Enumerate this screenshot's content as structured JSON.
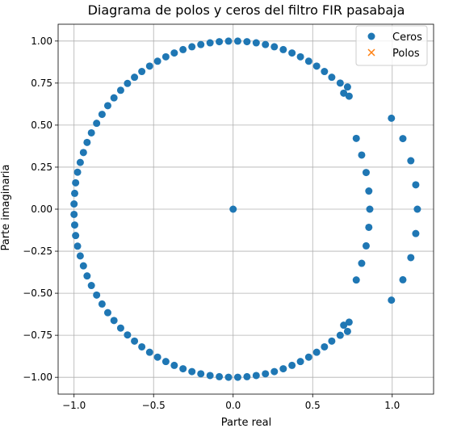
{
  "chart_data": {
    "type": "scatter",
    "title": "Diagrama de polos y ceros del filtro FIR pasabaja",
    "xlabel": "Parte real",
    "ylabel": "Parte imaginaria",
    "xlim": [
      -1.1,
      1.26
    ],
    "ylim": [
      -1.1,
      1.1
    ],
    "xticks": [
      -1.0,
      -0.5,
      0.0,
      0.5,
      1.0
    ],
    "xtick_labels": [
      "−1.0",
      "−0.5",
      "0.0",
      "0.5",
      "1.0"
    ],
    "yticks": [
      -1.0,
      -0.75,
      -0.5,
      -0.25,
      0.0,
      0.25,
      0.5,
      0.75,
      1.0
    ],
    "ytick_labels": [
      "−1.00",
      "−0.75",
      "−0.50",
      "−0.25",
      "0.00",
      "0.25",
      "0.50",
      "0.75",
      "1.00"
    ],
    "grid": true,
    "legend_position": "top-right",
    "series": [
      {
        "name": "Ceros",
        "marker": "circle",
        "color": "#1f77b4",
        "points": [
          [
            0.0,
            0.0
          ],
          [
            0.029,
            0.9996
          ],
          [
            0.087,
            0.9962
          ],
          [
            0.145,
            0.9894
          ],
          [
            0.203,
            0.9792
          ],
          [
            0.259,
            0.9659
          ],
          [
            0.315,
            0.9491
          ],
          [
            0.37,
            0.929
          ],
          [
            0.423,
            0.9063
          ],
          [
            0.475,
            0.8801
          ],
          [
            0.525,
            0.8511
          ],
          [
            0.574,
            0.8188
          ],
          [
            0.62,
            0.7846
          ],
          [
            0.673,
            0.75
          ],
          [
            0.695,
            0.69
          ],
          [
            0.719,
            0.727
          ],
          [
            0.729,
            0.672
          ],
          [
            -0.029,
            0.9996
          ],
          [
            -0.087,
            0.9962
          ],
          [
            -0.145,
            0.9894
          ],
          [
            -0.203,
            0.9792
          ],
          [
            -0.259,
            0.9659
          ],
          [
            -0.315,
            0.9491
          ],
          [
            -0.37,
            0.929
          ],
          [
            -0.423,
            0.9063
          ],
          [
            -0.475,
            0.8801
          ],
          [
            -0.525,
            0.8511
          ],
          [
            -0.574,
            0.8188
          ],
          [
            -0.62,
            0.7846
          ],
          [
            -0.664,
            0.748
          ],
          [
            -0.707,
            0.7071
          ],
          [
            -0.749,
            0.662
          ],
          [
            -0.788,
            0.6157
          ],
          [
            -0.824,
            0.564
          ],
          [
            -0.858,
            0.5108
          ],
          [
            -0.891,
            0.454
          ],
          [
            -0.918,
            0.397
          ],
          [
            -0.941,
            0.337
          ],
          [
            -0.961,
            0.278
          ],
          [
            -0.978,
            0.22
          ],
          [
            -0.99,
            0.157
          ],
          [
            -0.996,
            0.094
          ],
          [
            -1.0,
            0.031
          ],
          [
            -1.0,
            -0.031
          ],
          [
            -0.996,
            -0.094
          ],
          [
            -0.99,
            -0.157
          ],
          [
            -0.978,
            -0.22
          ],
          [
            -0.961,
            -0.278
          ],
          [
            -0.941,
            -0.337
          ],
          [
            -0.918,
            -0.397
          ],
          [
            -0.891,
            -0.454
          ],
          [
            -0.858,
            -0.5108
          ],
          [
            -0.824,
            -0.564
          ],
          [
            -0.788,
            -0.6157
          ],
          [
            -0.749,
            -0.662
          ],
          [
            -0.707,
            -0.7071
          ],
          [
            -0.664,
            -0.748
          ],
          [
            -0.62,
            -0.7846
          ],
          [
            -0.574,
            -0.8188
          ],
          [
            -0.525,
            -0.8511
          ],
          [
            -0.475,
            -0.8801
          ],
          [
            -0.423,
            -0.9063
          ],
          [
            -0.37,
            -0.929
          ],
          [
            -0.315,
            -0.9491
          ],
          [
            -0.259,
            -0.9659
          ],
          [
            -0.203,
            -0.9792
          ],
          [
            -0.145,
            -0.9894
          ],
          [
            -0.087,
            -0.9962
          ],
          [
            -0.029,
            -0.9996
          ],
          [
            0.029,
            -0.9996
          ],
          [
            0.087,
            -0.9962
          ],
          [
            0.145,
            -0.9894
          ],
          [
            0.203,
            -0.9792
          ],
          [
            0.259,
            -0.9659
          ],
          [
            0.315,
            -0.9491
          ],
          [
            0.37,
            -0.929
          ],
          [
            0.423,
            -0.9063
          ],
          [
            0.475,
            -0.8801
          ],
          [
            0.525,
            -0.8511
          ],
          [
            0.574,
            -0.8188
          ],
          [
            0.62,
            -0.7846
          ],
          [
            0.673,
            -0.75
          ],
          [
            0.695,
            -0.69
          ],
          [
            0.719,
            -0.727
          ],
          [
            0.729,
            -0.672
          ],
          [
            0.774,
            0.421
          ],
          [
            0.808,
            0.322
          ],
          [
            0.836,
            0.218
          ],
          [
            0.853,
            0.108
          ],
          [
            0.859,
            0.0
          ],
          [
            0.853,
            -0.108
          ],
          [
            0.836,
            -0.218
          ],
          [
            0.808,
            -0.322
          ],
          [
            0.774,
            -0.421
          ],
          [
            0.995,
            0.541
          ],
          [
            1.067,
            0.42
          ],
          [
            1.117,
            0.288
          ],
          [
            1.148,
            0.145
          ],
          [
            1.158,
            0.0
          ],
          [
            1.148,
            -0.145
          ],
          [
            1.117,
            -0.288
          ],
          [
            1.067,
            -0.42
          ],
          [
            0.995,
            -0.541
          ]
        ]
      },
      {
        "name": "Polos",
        "marker": "x",
        "color": "#ff7f0e",
        "points": []
      }
    ]
  }
}
